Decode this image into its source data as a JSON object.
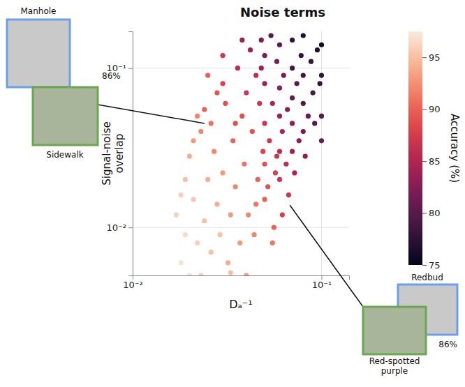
{
  "chart_data": {
    "type": "scatter",
    "title": "Noise terms",
    "x_label": "Dₐ⁻¹",
    "y_label": "Signal-noise overlap",
    "log": true,
    "grid": true,
    "xlim": [
      0.01,
      0.14
    ],
    "ylim": [
      0.005,
      0.17
    ],
    "xticks": [
      {
        "value": 0.01,
        "label": "10⁻²"
      },
      {
        "value": 0.1,
        "label": "10⁻¹"
      }
    ],
    "yticks": [
      {
        "value": 0.01,
        "label": "10⁻²"
      },
      {
        "value": 0.1,
        "label": "10⁻¹"
      }
    ],
    "x": [
      0.018,
      0.019,
      0.017,
      0.02,
      0.021,
      0.019,
      0.022,
      0.02,
      0.018,
      0.021,
      0.023,
      0.024,
      0.025,
      0.023,
      0.026,
      0.027,
      0.024,
      0.028,
      0.026,
      0.029,
      0.03,
      0.031,
      0.032,
      0.033,
      0.03,
      0.034,
      0.035,
      0.036,
      0.037,
      0.038,
      0.039,
      0.04,
      0.041,
      0.042,
      0.043,
      0.044,
      0.045,
      0.046,
      0.047,
      0.048,
      0.049,
      0.05,
      0.05,
      0.05,
      0.05,
      0.05,
      0.052,
      0.053,
      0.054,
      0.055,
      0.056,
      0.057,
      0.058,
      0.06,
      0.06,
      0.06,
      0.06,
      0.06,
      0.062,
      0.063,
      0.065,
      0.066,
      0.067,
      0.07,
      0.07,
      0.07,
      0.07,
      0.07,
      0.072,
      0.074,
      0.076,
      0.078,
      0.08,
      0.08,
      0.08,
      0.08,
      0.082,
      0.085,
      0.088,
      0.09,
      0.092,
      0.095,
      0.098,
      0.1,
      0.1,
      0.1,
      0.1,
      0.058,
      0.045,
      0.035,
      0.028,
      0.022,
      0.04,
      0.033,
      0.055,
      0.062,
      0.048,
      0.038,
      0.03,
      0.025
    ],
    "values": [
      0.006,
      0.009,
      0.012,
      0.005,
      0.015,
      0.02,
      0.008,
      0.028,
      0.016,
      0.035,
      0.005,
      0.011,
      0.02,
      0.04,
      0.007,
      0.03,
      0.055,
      0.014,
      0.045,
      0.009,
      0.022,
      0.06,
      0.006,
      0.012,
      0.08,
      0.035,
      0.018,
      0.1,
      0.008,
      0.05,
      0.025,
      0.07,
      0.012,
      0.13,
      0.04,
      0.009,
      0.09,
      0.02,
      0.06,
      0.15,
      0.03,
      0.015,
      0.025,
      0.045,
      0.08,
      0.12,
      0.018,
      0.035,
      0.16,
      0.06,
      0.01,
      0.022,
      0.11,
      0.02,
      0.03,
      0.05,
      0.075,
      0.14,
      0.04,
      0.09,
      0.025,
      0.055,
      0.016,
      0.03,
      0.045,
      0.065,
      0.1,
      0.15,
      0.022,
      0.08,
      0.035,
      0.12,
      0.04,
      0.06,
      0.09,
      0.16,
      0.028,
      0.05,
      0.11,
      0.07,
      0.045,
      0.13,
      0.08,
      0.05,
      0.09,
      0.14,
      0.035,
      0.028,
      0.014,
      0.045,
      0.07,
      0.05,
      0.005,
      0.0052,
      0.008,
      0.012,
      0.1,
      0.15,
      0.12,
      0.09
    ],
    "accuracy": [
      97,
      96.5,
      96,
      97,
      95.5,
      95,
      96,
      94,
      96,
      93,
      96,
      95,
      94,
      92,
      95,
      92,
      90,
      94,
      91,
      95,
      93,
      89,
      94,
      93,
      88,
      90,
      92,
      86,
      93,
      89,
      91,
      87,
      92,
      84,
      89,
      92,
      86,
      90,
      87,
      82,
      88,
      90,
      89,
      87,
      84,
      82,
      89,
      87,
      80,
      85,
      90,
      88,
      82,
      87,
      86,
      84,
      83,
      80,
      85,
      82,
      86,
      83,
      87,
      84,
      83,
      81,
      79,
      78,
      85,
      80,
      83,
      78,
      82,
      80,
      79,
      77,
      83,
      81,
      78,
      79,
      80,
      77,
      78,
      80,
      78,
      76,
      81,
      87,
      91,
      89,
      89,
      92,
      93,
      95,
      91,
      88,
      84,
      84,
      87,
      90
    ],
    "colorbar": {
      "label": "Accuracy (%)",
      "range": [
        75,
        97.5
      ],
      "ticks": [
        75,
        80,
        85,
        90,
        95
      ]
    },
    "annotations": [
      {
        "images": [
          "Manhole",
          "Sidewalk"
        ],
        "colors": [
          "#6d9eeb",
          "#6aa84f"
        ],
        "label": "86%",
        "x": 0.024,
        "y": 0.045
      },
      {
        "images": [
          "Redbud",
          "Red-spotted purple"
        ],
        "colors": [
          "#6d9eeb",
          "#6aa84f"
        ],
        "label": "86%",
        "x": 0.068,
        "y": 0.0138
      }
    ]
  }
}
